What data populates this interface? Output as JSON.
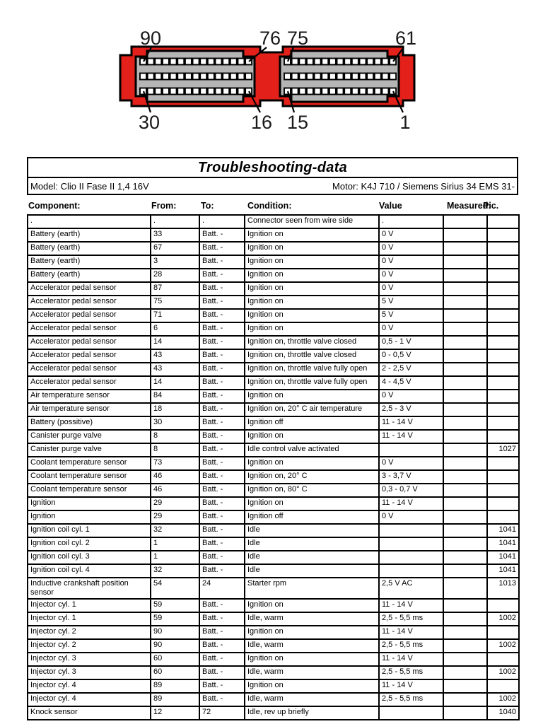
{
  "connector": {
    "labels": {
      "p90": "90",
      "p76": "76",
      "p75": "75",
      "p61": "61",
      "p30": "30",
      "p16": "16",
      "p15": "15",
      "p1": "1"
    },
    "colors": {
      "body": "#e32019",
      "panel": "#b5b5b5",
      "pin": "#ffffff",
      "outline": "#000000"
    },
    "pins_per_row": 15,
    "rows_per_panel": 3
  },
  "header": {
    "title": "Troubleshooting-data",
    "model": "Model:  Clio II Fase II 1,4 16V",
    "motor": "Motor:  K4J 710 / Siemens Sirius 34 EMS 31-"
  },
  "table": {
    "columns": [
      "Component:",
      "From:",
      "To:",
      "Condition:",
      "Value",
      "Measured:",
      "Pic."
    ],
    "rows": [
      [
        ".",
        ".",
        ".",
        "Connector seen from wire side",
        ".",
        "",
        ""
      ],
      [
        "Battery (earth)",
        "33",
        "Batt. -",
        "Ignition on",
        "0 V",
        "",
        ""
      ],
      [
        "Battery (earth)",
        "67",
        "Batt. -",
        "Ignition on",
        "0 V",
        "",
        ""
      ],
      [
        "Battery (earth)",
        "3",
        "Batt. -",
        "Ignition on",
        "0 V",
        "",
        ""
      ],
      [
        "Battery (earth)",
        "28",
        "Batt. -",
        "Ignition on",
        "0 V",
        "",
        ""
      ],
      [
        "Accelerator pedal sensor",
        "87",
        "Batt. -",
        "Ignition on",
        "0 V",
        "",
        ""
      ],
      [
        "Accelerator pedal sensor",
        "75",
        "Batt. -",
        "Ignition on",
        "5 V",
        "",
        ""
      ],
      [
        "Accelerator pedal sensor",
        "71",
        "Batt. -",
        "Ignition on",
        "5 V",
        "",
        ""
      ],
      [
        "Accelerator pedal sensor",
        "6",
        "Batt. -",
        "Ignition on",
        "0 V",
        "",
        ""
      ],
      [
        "Accelerator pedal sensor",
        "14",
        "Batt. -",
        "Ignition on, throttle valve closed",
        "0,5 - 1 V",
        "",
        ""
      ],
      [
        "Accelerator pedal sensor",
        "43",
        "Batt. -",
        "Ignition on, throttle valve closed",
        "0 - 0,5 V",
        "",
        ""
      ],
      [
        "Accelerator pedal sensor",
        "43",
        "Batt. -",
        "Ignition on, throttle valve fully open",
        "2 - 2,5 V",
        "",
        ""
      ],
      [
        "Accelerator pedal sensor",
        "14",
        "Batt. -",
        "Ignition on, throttle valve fully open",
        "4 - 4,5 V",
        "",
        ""
      ],
      [
        "Air temperature sensor",
        "84",
        "Batt. -",
        "Ignition on",
        "0 V",
        "",
        ""
      ],
      [
        "Air temperature sensor",
        "18",
        "Batt. -",
        "Ignition on, 20° C air temperature",
        "2,5 - 3 V",
        "",
        ""
      ],
      [
        "Battery (possitive)",
        "30",
        "Batt. -",
        "Ignition off",
        "11 - 14 V",
        "",
        ""
      ],
      [
        "Canister purge valve",
        "8",
        "Batt. -",
        "Ignition on",
        "11 - 14 V",
        "",
        ""
      ],
      [
        "Canister purge valve",
        "8",
        "Batt. -",
        "Idle control valve activated",
        "",
        "",
        "1027"
      ],
      [
        "Coolant temperature sensor",
        "73",
        "Batt. -",
        "Ignition on",
        "0 V",
        "",
        ""
      ],
      [
        "Coolant temperature sensor",
        "46",
        "Batt. -",
        "Ignition on, 20° C",
        "3 - 3,7 V",
        "",
        ""
      ],
      [
        "Coolant temperature sensor",
        "46",
        "Batt. -",
        "Ignition on, 80° C",
        "0,3 - 0,7 V",
        "",
        ""
      ],
      [
        "Ignition",
        "29",
        "Batt. -",
        "Ignition on",
        "11 - 14 V",
        "",
        ""
      ],
      [
        "Ignition",
        "29",
        "Batt. -",
        "Ignition off",
        "0 V",
        "",
        ""
      ],
      [
        "Ignition coil cyl. 1",
        "32",
        "Batt. -",
        "Idle",
        "",
        "",
        "1041"
      ],
      [
        "Ignition coil cyl. 2",
        "1",
        "Batt. -",
        "Idle",
        "",
        "",
        "1041"
      ],
      [
        "Ignition coil cyl. 3",
        "1",
        "Batt. -",
        "Idle",
        "",
        "",
        "1041"
      ],
      [
        "Ignition coil cyl. 4",
        "32",
        "Batt. -",
        "Idle",
        "",
        "",
        "1041"
      ],
      [
        "Inductive crankshaft position sensor",
        "54",
        "24",
        "Starter rpm",
        "2,5 V AC",
        "",
        "1013"
      ],
      [
        "Injector cyl. 1",
        "59",
        "Batt. -",
        "Ignition on",
        "11 - 14 V",
        "",
        ""
      ],
      [
        "Injector cyl. 1",
        "59",
        "Batt. -",
        "Idle, warm",
        "2,5 - 5,5 ms",
        "",
        "1002"
      ],
      [
        "Injector cyl. 2",
        "90",
        "Batt. -",
        "Ignition on",
        "11 - 14 V",
        "",
        ""
      ],
      [
        "Injector cyl. 2",
        "90",
        "Batt. -",
        "Idle, warm",
        "2,5 - 5,5 ms",
        "",
        "1002"
      ],
      [
        "Injector cyl. 3",
        "60",
        "Batt. -",
        "Ignition on",
        "11 - 14 V",
        "",
        ""
      ],
      [
        "Injector cyl. 3",
        "60",
        "Batt. -",
        "Idle, warm",
        "2,5 - 5,5 ms",
        "",
        "1002"
      ],
      [
        "Injector cyl. 4",
        "89",
        "Batt. -",
        "Ignition on",
        "11 - 14 V",
        "",
        ""
      ],
      [
        "Injector cyl. 4",
        "89",
        "Batt. -",
        "Idle, warm",
        "2,5 - 5,5 ms",
        "",
        "1002"
      ],
      [
        "Knock sensor",
        "12",
        "72",
        "Idle, rev up briefly",
        "",
        "",
        "1040"
      ]
    ]
  }
}
